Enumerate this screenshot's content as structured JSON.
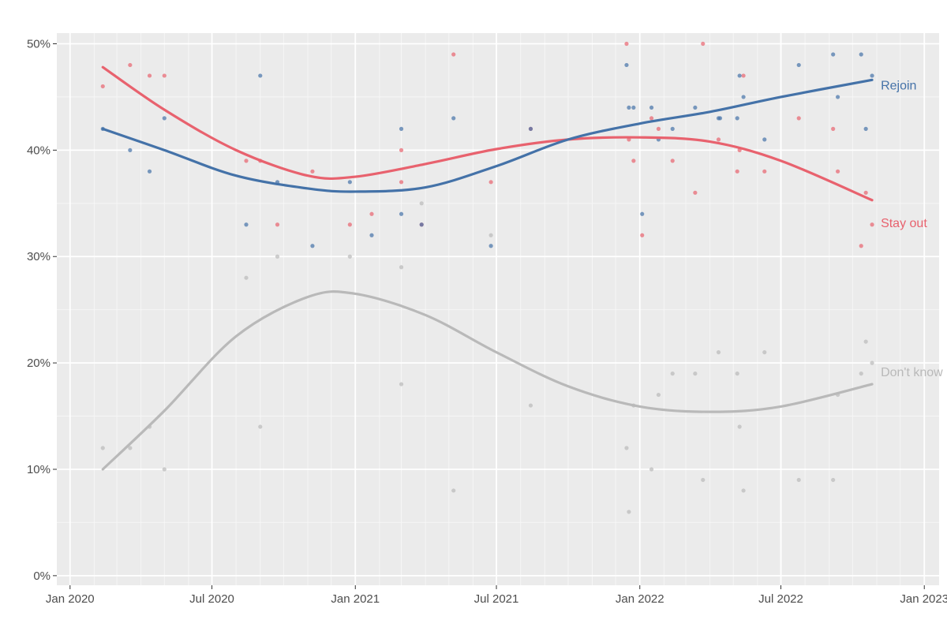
{
  "chart_data": {
    "type": "scatter",
    "title": "",
    "xlabel": "",
    "ylabel": "",
    "x_ticks": [
      "Jan 2020",
      "Jul 2020",
      "Jan 2021",
      "Jul 2021",
      "Jan 2022",
      "Jul 2022",
      "Jan 2023"
    ],
    "x_range": [
      "2019-12-15",
      "2023-01-20"
    ],
    "y_ticks": [
      "0%",
      "10%",
      "20%",
      "30%",
      "40%",
      "50%"
    ],
    "ylim": [
      -0.9,
      51.0
    ],
    "grid": true,
    "legend": "direct labels at line ends (right)",
    "series": [
      {
        "name": "Rejoin",
        "color": "#4472a8",
        "points": [
          [
            "2020-02-12",
            42
          ],
          [
            "2020-03-18",
            40
          ],
          [
            "2020-04-12",
            38
          ],
          [
            "2020-05-01",
            43
          ],
          [
            "2020-08-14",
            33
          ],
          [
            "2020-09-01",
            47
          ],
          [
            "2020-09-23",
            37
          ],
          [
            "2020-11-07",
            31
          ],
          [
            "2020-12-25",
            37
          ],
          [
            "2021-01-22",
            32
          ],
          [
            "2021-03-01",
            34
          ],
          [
            "2021-03-01",
            42
          ],
          [
            "2021-03-27",
            33
          ],
          [
            "2021-05-07",
            43
          ],
          [
            "2021-06-24",
            31
          ],
          [
            "2021-08-14",
            42
          ],
          [
            "2021-12-15",
            48
          ],
          [
            "2021-12-18",
            44
          ],
          [
            "2021-12-24",
            44
          ],
          [
            "2022-01-04",
            34
          ],
          [
            "2022-01-16",
            44
          ],
          [
            "2022-01-25",
            41
          ],
          [
            "2022-02-12",
            42
          ],
          [
            "2022-03-13",
            44
          ],
          [
            "2022-04-12",
            43
          ],
          [
            "2022-04-14",
            43
          ],
          [
            "2022-05-06",
            43
          ],
          [
            "2022-05-09",
            47
          ],
          [
            "2022-05-14",
            45
          ],
          [
            "2022-06-10",
            41
          ],
          [
            "2022-07-24",
            48
          ],
          [
            "2022-09-06",
            49
          ],
          [
            "2022-09-12",
            45
          ],
          [
            "2022-10-12",
            49
          ],
          [
            "2022-10-18",
            42
          ],
          [
            "2022-10-26",
            47
          ]
        ],
        "smooth": [
          [
            "2020-02-12",
            42.0
          ],
          [
            "2020-05-01",
            40.0
          ],
          [
            "2020-08-01",
            37.6
          ],
          [
            "2020-11-01",
            36.4
          ],
          [
            "2021-01-01",
            36.1
          ],
          [
            "2021-04-01",
            36.5
          ],
          [
            "2021-07-01",
            38.5
          ],
          [
            "2021-10-01",
            41.0
          ],
          [
            "2022-01-01",
            42.5
          ],
          [
            "2022-04-01",
            43.6
          ],
          [
            "2022-07-01",
            45.0
          ],
          [
            "2022-10-26",
            46.6
          ]
        ]
      },
      {
        "name": "Stay out",
        "color": "#e8626e",
        "points": [
          [
            "2020-02-12",
            46
          ],
          [
            "2020-03-18",
            48
          ],
          [
            "2020-04-12",
            47
          ],
          [
            "2020-05-01",
            47
          ],
          [
            "2020-08-14",
            39
          ],
          [
            "2020-09-01",
            39
          ],
          [
            "2020-09-23",
            33
          ],
          [
            "2020-11-07",
            38
          ],
          [
            "2020-12-25",
            33
          ],
          [
            "2021-01-22",
            34
          ],
          [
            "2021-03-01",
            40
          ],
          [
            "2021-03-01",
            37
          ],
          [
            "2021-03-27",
            33
          ],
          [
            "2021-05-07",
            49
          ],
          [
            "2021-06-24",
            37
          ],
          [
            "2021-08-14",
            42
          ],
          [
            "2021-12-15",
            50
          ],
          [
            "2021-12-18",
            41
          ],
          [
            "2021-12-24",
            39
          ],
          [
            "2022-01-04",
            32
          ],
          [
            "2022-01-16",
            43
          ],
          [
            "2022-01-25",
            42
          ],
          [
            "2022-02-12",
            39
          ],
          [
            "2022-03-13",
            36
          ],
          [
            "2022-03-23",
            50
          ],
          [
            "2022-04-12",
            41
          ],
          [
            "2022-05-06",
            38
          ],
          [
            "2022-05-09",
            40
          ],
          [
            "2022-05-14",
            47
          ],
          [
            "2022-06-10",
            38
          ],
          [
            "2022-07-24",
            43
          ],
          [
            "2022-09-06",
            42
          ],
          [
            "2022-09-12",
            38
          ],
          [
            "2022-10-12",
            31
          ],
          [
            "2022-10-18",
            36
          ],
          [
            "2022-10-26",
            33
          ]
        ],
        "smooth": [
          [
            "2020-02-12",
            47.8
          ],
          [
            "2020-05-01",
            43.8
          ],
          [
            "2020-08-01",
            40.0
          ],
          [
            "2020-11-01",
            37.6
          ],
          [
            "2021-01-01",
            37.5
          ],
          [
            "2021-04-01",
            38.7
          ],
          [
            "2021-07-01",
            40.1
          ],
          [
            "2021-10-01",
            41.0
          ],
          [
            "2022-01-01",
            41.2
          ],
          [
            "2022-04-01",
            40.8
          ],
          [
            "2022-07-01",
            39.0
          ],
          [
            "2022-10-26",
            35.3
          ]
        ]
      },
      {
        "name": "Don't know",
        "color": "#b9b9b9",
        "points": [
          [
            "2020-02-12",
            12
          ],
          [
            "2020-03-18",
            12
          ],
          [
            "2020-04-12",
            14
          ],
          [
            "2020-05-01",
            10
          ],
          [
            "2020-08-14",
            28
          ],
          [
            "2020-09-01",
            14
          ],
          [
            "2020-09-23",
            30
          ],
          [
            "2020-12-25",
            30
          ],
          [
            "2021-03-01",
            29
          ],
          [
            "2021-03-01",
            18
          ],
          [
            "2021-03-27",
            35
          ],
          [
            "2021-05-07",
            8
          ],
          [
            "2021-06-24",
            32
          ],
          [
            "2021-08-14",
            16
          ],
          [
            "2021-12-15",
            12
          ],
          [
            "2021-12-18",
            6
          ],
          [
            "2021-12-24",
            16
          ],
          [
            "2022-01-16",
            10
          ],
          [
            "2022-01-25",
            17
          ],
          [
            "2022-02-12",
            19
          ],
          [
            "2022-03-13",
            19
          ],
          [
            "2022-03-23",
            9
          ],
          [
            "2022-04-12",
            21
          ],
          [
            "2022-05-06",
            19
          ],
          [
            "2022-05-09",
            14
          ],
          [
            "2022-05-14",
            8
          ],
          [
            "2022-06-10",
            21
          ],
          [
            "2022-07-24",
            9
          ],
          [
            "2022-09-06",
            9
          ],
          [
            "2022-09-12",
            17
          ],
          [
            "2022-10-12",
            19
          ],
          [
            "2022-10-18",
            22
          ],
          [
            "2022-10-26",
            20
          ]
        ],
        "smooth": [
          [
            "2020-02-12",
            10.0
          ],
          [
            "2020-05-01",
            15.5
          ],
          [
            "2020-08-01",
            22.5
          ],
          [
            "2020-11-01",
            26.2
          ],
          [
            "2021-01-01",
            26.5
          ],
          [
            "2021-04-01",
            24.5
          ],
          [
            "2021-07-01",
            21.0
          ],
          [
            "2021-10-01",
            17.8
          ],
          [
            "2022-01-01",
            15.9
          ],
          [
            "2022-04-01",
            15.4
          ],
          [
            "2022-07-01",
            15.9
          ],
          [
            "2022-10-26",
            18.0
          ]
        ]
      }
    ]
  }
}
